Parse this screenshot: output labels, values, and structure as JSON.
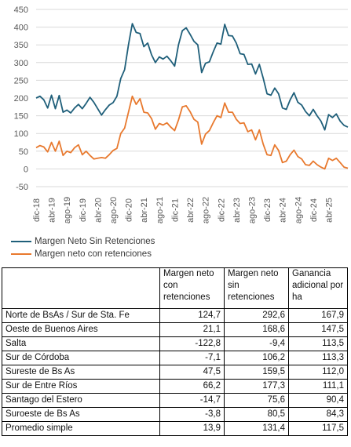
{
  "colors": {
    "sin": "#1f5f7a",
    "con": "#e8792e",
    "grid": "#d9d9d9",
    "text": "#595959"
  },
  "chart_data": {
    "type": "line",
    "ylim": [
      -50,
      450
    ],
    "yticks": [
      -50,
      0,
      50,
      100,
      150,
      200,
      250,
      300,
      350,
      400,
      450
    ],
    "x_start": "2018-12",
    "xtick_labels": [
      "dic-18",
      "abr-19",
      "ago-19",
      "dic-19",
      "abr-20",
      "ago-20",
      "dic-20",
      "abr-21",
      "ago-21",
      "dic-21",
      "abr-22",
      "ago-22",
      "dic-22",
      "abr-23",
      "ago-23",
      "dic-23",
      "abr-24",
      "ago-24",
      "dic-24",
      "abr-25"
    ],
    "grid": true,
    "legend_placement": "bottom-left",
    "series": [
      {
        "name": "Margen Neto Sin Retenciones",
        "color": "#1f5f7a",
        "values": [
          200,
          205,
          195,
          172,
          208,
          170,
          207,
          160,
          166,
          158,
          172,
          182,
          170,
          185,
          202,
          188,
          170,
          152,
          167,
          180,
          187,
          205,
          255,
          280,
          350,
          410,
          385,
          382,
          345,
          355,
          322,
          300,
          316,
          310,
          318,
          305,
          290,
          350,
          390,
          398,
          380,
          360,
          350,
          272,
          298,
          302,
          330,
          355,
          352,
          408,
          376,
          375,
          355,
          325,
          323,
          295,
          296,
          268,
          295,
          256,
          212,
          208,
          228,
          212,
          172,
          168,
          195,
          215,
          188,
          180,
          162,
          150,
          168,
          150,
          135,
          110,
          153,
          145,
          155,
          135,
          123,
          118
        ]
      },
      {
        "name": "Margen neto con retenciones",
        "color": "#e8792e",
        "values": [
          60,
          66,
          62,
          48,
          75,
          50,
          78,
          38,
          50,
          46,
          60,
          68,
          40,
          50,
          38,
          28,
          30,
          32,
          30,
          40,
          52,
          58,
          100,
          115,
          160,
          205,
          182,
          198,
          160,
          158,
          142,
          112,
          128,
          124,
          130,
          118,
          108,
          138,
          175,
          178,
          162,
          140,
          132,
          70,
          98,
          108,
          130,
          150,
          145,
          186,
          160,
          160,
          140,
          128,
          130,
          105,
          110,
          82,
          110,
          70,
          40,
          38,
          68,
          52,
          18,
          22,
          40,
          53,
          35,
          28,
          12,
          10,
          22,
          12,
          5,
          0,
          30,
          24,
          30,
          18,
          5,
          2
        ]
      }
    ]
  },
  "table": {
    "headers": [
      "",
      "Margen neto con retenciones",
      "Margen neto sin retenciones",
      "Ganancia adicional por ha"
    ],
    "rows": [
      [
        "Norte de BsAs / Sur de Sta. Fe",
        "124,7",
        "292,6",
        "167,9"
      ],
      [
        "Oeste de Buenos Aires",
        "21,1",
        "168,6",
        "147,5"
      ],
      [
        "Salta",
        "-122,8",
        "-9,4",
        "113,5"
      ],
      [
        "Sur de Córdoba",
        "-7,1",
        "106,2",
        "113,3"
      ],
      [
        "Sureste de Bs As",
        "47,5",
        "159,5",
        "112,0"
      ],
      [
        "Sur de Entre Ríos",
        "66,2",
        "177,3",
        "111,1"
      ],
      [
        "Santago del Estero",
        "-14,7",
        "75,6",
        "90,4"
      ],
      [
        "Suroeste de Bs As",
        "-3,8",
        "80,5",
        "84,3"
      ],
      [
        "Promedio simple",
        "13,9",
        "131,4",
        "117,5"
      ]
    ]
  }
}
